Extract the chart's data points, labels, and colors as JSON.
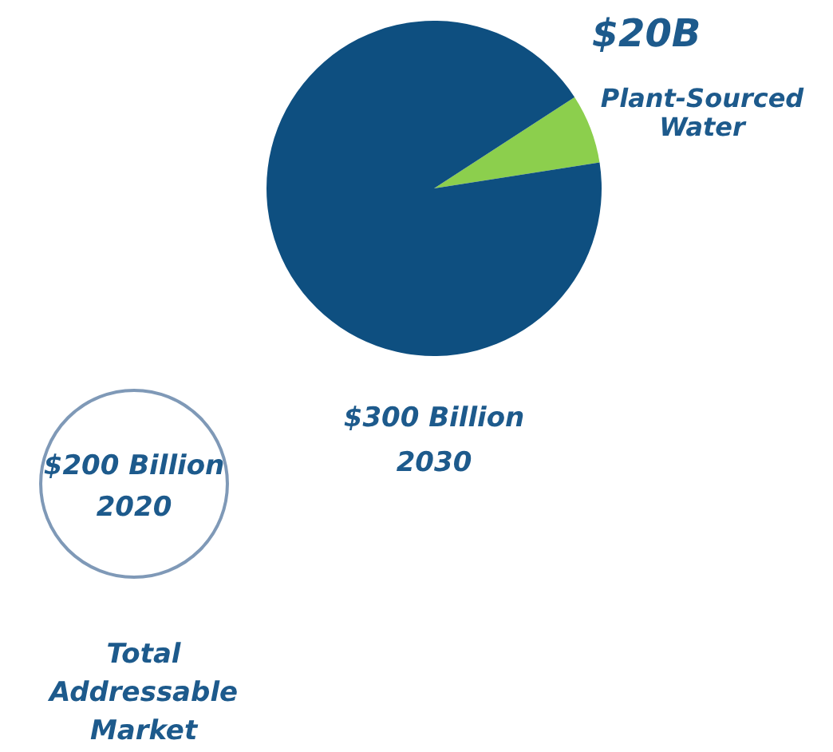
{
  "chart_data": {
    "type": "pie",
    "categories": [
      "Plant-Sourced Water",
      null
    ],
    "values": [
      6.7,
      93.3
    ],
    "colors": [
      "#8ccf4d",
      "#0e4f80"
    ],
    "annotations": [
      "$20B",
      "$300 Billion",
      "2030",
      "$200 Billion",
      "2020",
      "Total Addressable Market"
    ]
  }
}
